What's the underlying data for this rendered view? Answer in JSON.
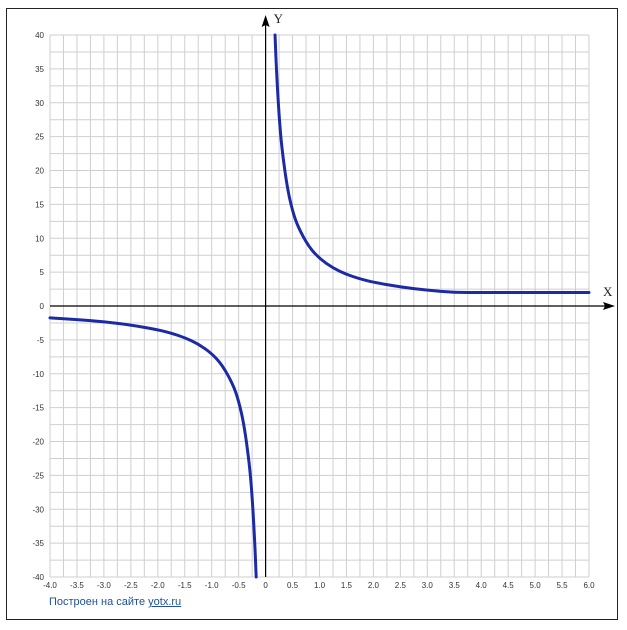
{
  "chart_data": {
    "type": "line",
    "title": "",
    "xlabel": "X",
    "ylabel": "Y",
    "xlim": [
      -4.0,
      6.0
    ],
    "ylim": [
      -40,
      40
    ],
    "grid": true,
    "x_minor_step": 0.25,
    "y_minor_step": 2.5,
    "x_tick_labels": [
      "-4.0",
      "-3.5",
      "-3.0",
      "-2.5",
      "-2.0",
      "-1.5",
      "-1.0",
      "-0.5",
      "0",
      "0.5",
      "1.0",
      "1.5",
      "2.0",
      "2.5",
      "3.0",
      "3.5",
      "4.0",
      "4.5",
      "5.0",
      "5.5",
      "6.0"
    ],
    "y_tick_labels": [
      "40",
      "35",
      "30",
      "25",
      "20",
      "15",
      "10",
      "5",
      "0",
      "-5",
      "-10",
      "-15",
      "-20",
      "-25",
      "-30",
      "-35",
      "-40"
    ],
    "colors": {
      "curve": "#1c2aa6",
      "grid": "#cfcfcf",
      "axis": "#000000"
    },
    "series": [
      {
        "points": [
          [
            -4.0,
            -1.75
          ],
          [
            -3.5,
            -2.0
          ],
          [
            -3.0,
            -2.33
          ],
          [
            -2.5,
            -2.8
          ],
          [
            -2.0,
            -3.5
          ],
          [
            -1.75,
            -4.0
          ],
          [
            -1.5,
            -4.67
          ],
          [
            -1.25,
            -5.6
          ],
          [
            -1.0,
            -7.0
          ],
          [
            -0.8,
            -8.75
          ],
          [
            -0.6,
            -11.67
          ],
          [
            -0.5,
            -14.0
          ],
          [
            -0.4,
            -17.5
          ],
          [
            -0.3,
            -23.33
          ],
          [
            -0.25,
            -28.0
          ],
          [
            -0.2,
            -35.0
          ],
          [
            -0.175,
            -40.0
          ]
        ]
      },
      {
        "points": [
          [
            0.175,
            40.0
          ],
          [
            0.2,
            35.0
          ],
          [
            0.25,
            28.0
          ],
          [
            0.3,
            23.33
          ],
          [
            0.4,
            17.5
          ],
          [
            0.5,
            14.0
          ],
          [
            0.6,
            11.67
          ],
          [
            0.8,
            8.75
          ],
          [
            1.0,
            7.0
          ],
          [
            1.25,
            5.6
          ],
          [
            1.5,
            4.67
          ],
          [
            1.75,
            4.0
          ],
          [
            2.0,
            3.5
          ],
          [
            2.5,
            2.8
          ],
          [
            3.0,
            2.33
          ],
          [
            3.5,
            2.0
          ],
          [
            4.0,
            2.0
          ],
          [
            4.5,
            2.0
          ],
          [
            5.0,
            2.0
          ],
          [
            5.5,
            2.0
          ],
          [
            6.0,
            2.0
          ]
        ]
      }
    ]
  },
  "footer": {
    "text": "Построен на сайте ",
    "link": "yotx.ru"
  }
}
